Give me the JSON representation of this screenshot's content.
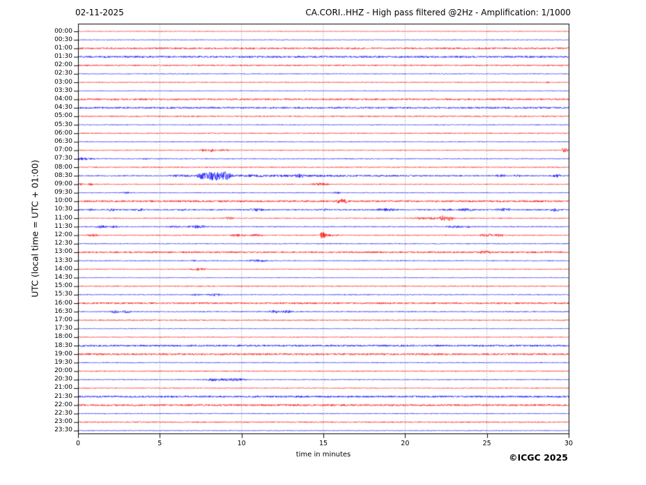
{
  "header": {
    "date": "02-11-2025",
    "title": "CA.CORI..HHZ - High pass filtered @2Hz - Amplification: 1/1000"
  },
  "axes": {
    "y_label": "UTC (local time = UTC + 01:00)",
    "x_label": "time in minutes",
    "x_ticks": [
      0,
      5,
      10,
      15,
      20,
      25,
      30
    ]
  },
  "footer": {
    "copyright": "©ICGC 2025"
  },
  "colors": {
    "r": "#ff0000",
    "b": "#0000ff",
    "grid": "#555555",
    "axis": "#000000"
  },
  "chart_data": {
    "type": "line",
    "kind": "helicorder-seismogram",
    "station": "CA.CORI..HHZ",
    "date": "02-11-2025",
    "filter": "High pass filtered @2Hz",
    "amplification": "1/1000",
    "minutes_per_row": 30,
    "x_range": [
      0,
      30
    ],
    "x_ticks": [
      0,
      5,
      10,
      15,
      20,
      25,
      30
    ],
    "grid": "vertical-dotted-5min",
    "legend": "red = traces starting on the hour, blue = traces starting on the half hour; amplitude in px, events listed as [start_min, end_min, amplitude, shape]",
    "rows": [
      {
        "t": "00:00",
        "c": "r",
        "n": 0.5,
        "ev": []
      },
      {
        "t": "00:30",
        "c": "b",
        "n": 0.5,
        "ev": []
      },
      {
        "t": "01:00",
        "c": "r",
        "n": 1.2,
        "ev": []
      },
      {
        "t": "01:30",
        "c": "b",
        "n": 1.3,
        "ev": []
      },
      {
        "t": "02:00",
        "c": "r",
        "n": 0.9,
        "ev": []
      },
      {
        "t": "02:30",
        "c": "b",
        "n": 0.55,
        "ev": []
      },
      {
        "t": "03:00",
        "c": "r",
        "n": 0.6,
        "ev": [
          [
            19.9,
            20.1,
            0.5
          ],
          [
            28.6,
            28.8,
            0.6
          ]
        ]
      },
      {
        "t": "03:30",
        "c": "b",
        "n": 0.5,
        "ev": []
      },
      {
        "t": "04:00",
        "c": "r",
        "n": 1.2,
        "ev": []
      },
      {
        "t": "04:30",
        "c": "b",
        "n": 1.2,
        "ev": []
      },
      {
        "t": "05:00",
        "c": "r",
        "n": 0.8,
        "ev": []
      },
      {
        "t": "05:30",
        "c": "b",
        "n": 0.55,
        "ev": []
      },
      {
        "t": "06:00",
        "c": "r",
        "n": 0.7,
        "ev": []
      },
      {
        "t": "06:30",
        "c": "b",
        "n": 0.6,
        "ev": []
      },
      {
        "t": "07:00",
        "c": "r",
        "n": 0.6,
        "ev": [
          [
            7.4,
            7.9,
            1.5
          ],
          [
            7.9,
            8.5,
            2.0
          ],
          [
            8.6,
            9.3,
            1.5
          ],
          [
            29.55,
            30,
            2.5,
            "block"
          ]
        ]
      },
      {
        "t": "07:30",
        "c": "b",
        "n": 0.6,
        "ev": [
          [
            0,
            1.3,
            2.0,
            "fade"
          ],
          [
            3.9,
            4.3,
            0.8
          ]
        ]
      },
      {
        "t": "08:00",
        "c": "r",
        "n": 0.7,
        "ev": []
      },
      {
        "t": "08:30",
        "c": "b",
        "n": 0.8,
        "ev": [
          [
            5.6,
            7.1,
            0.9,
            "block"
          ],
          [
            7.1,
            9.7,
            7.5
          ],
          [
            9.7,
            30,
            1.0,
            "fade"
          ],
          [
            13.2,
            13.9,
            1.5
          ],
          [
            25.5,
            26.3,
            1.5
          ],
          [
            26.6,
            27.1,
            1.3
          ],
          [
            29.0,
            29.6,
            1.7
          ]
        ]
      },
      {
        "t": "09:00",
        "c": "r",
        "n": 0.6,
        "ev": [
          [
            0,
            0.35,
            1.2,
            "block"
          ],
          [
            0.6,
            0.95,
            1.6
          ],
          [
            14.15,
            15.4,
            2.0
          ]
        ]
      },
      {
        "t": "09:30",
        "c": "b",
        "n": 0.6,
        "ev": [
          [
            2.7,
            3.15,
            1.4
          ],
          [
            15.45,
            16.1,
            1.2
          ]
        ]
      },
      {
        "t": "10:00",
        "c": "r",
        "n": 1.3,
        "ev": [
          [
            15.75,
            16.55,
            2.6
          ]
        ]
      },
      {
        "t": "10:30",
        "c": "b",
        "n": 0.9,
        "ev": [
          [
            0.55,
            0.95,
            1.1
          ],
          [
            1.65,
            2.35,
            1.7
          ],
          [
            3.4,
            4.1,
            1.1
          ],
          [
            6.25,
            6.65,
            0.9
          ],
          [
            10.4,
            11.4,
            1.7
          ],
          [
            14.9,
            15.3,
            0.8
          ],
          [
            18.2,
            19.6,
            2.0
          ],
          [
            22.2,
            23.1,
            1.1
          ],
          [
            23.2,
            24.3,
            1.5
          ],
          [
            25.5,
            26.6,
            1.6
          ],
          [
            28.8,
            29.5,
            2.0
          ]
        ]
      },
      {
        "t": "11:00",
        "c": "r",
        "n": 0.65,
        "ev": [
          [
            8.9,
            9.5,
            1.7
          ],
          [
            20.2,
            23.2,
            1.0,
            "block"
          ],
          [
            22.1,
            22.5,
            2.8
          ],
          [
            22.55,
            22.95,
            2.2
          ]
        ]
      },
      {
        "t": "11:30",
        "c": "b",
        "n": 0.7,
        "ev": [
          [
            1.0,
            1.8,
            1.6
          ],
          [
            1.9,
            2.5,
            1.3
          ],
          [
            5.5,
            6.4,
            1.2
          ],
          [
            6.6,
            8.0,
            1.8
          ],
          [
            22.4,
            24.2,
            0.8,
            "block"
          ]
        ]
      },
      {
        "t": "12:00",
        "c": "r",
        "n": 0.7,
        "ev": [
          [
            0.5,
            1.35,
            1.4
          ],
          [
            9.3,
            10.4,
            1.4
          ],
          [
            10.45,
            11.4,
            1.4
          ],
          [
            14.8,
            15.15,
            4.5,
            "spike"
          ],
          [
            15.1,
            16.3,
            1.6,
            "fade"
          ],
          [
            24.5,
            25.4,
            2.0
          ],
          [
            25.4,
            26.1,
            1.4
          ]
        ]
      },
      {
        "t": "12:30",
        "c": "b",
        "n": 0.6,
        "ev": []
      },
      {
        "t": "13:00",
        "c": "r",
        "n": 1.2,
        "ev": [
          [
            24.5,
            25.4,
            1.6
          ]
        ]
      },
      {
        "t": "13:30",
        "c": "b",
        "n": 0.6,
        "ev": [
          [
            6.9,
            7.25,
            0.8
          ],
          [
            10.3,
            11.7,
            1.7
          ]
        ]
      },
      {
        "t": "14:00",
        "c": "r",
        "n": 0.6,
        "ev": [
          [
            6.8,
            8.0,
            1.8
          ]
        ]
      },
      {
        "t": "14:30",
        "c": "b",
        "n": 0.5,
        "ev": []
      },
      {
        "t": "15:00",
        "c": "r",
        "n": 0.7,
        "ev": []
      },
      {
        "t": "15:30",
        "c": "b",
        "n": 0.6,
        "ev": [
          [
            6.9,
            7.5,
            1.1
          ],
          [
            7.9,
            8.8,
            1.6
          ]
        ]
      },
      {
        "t": "16:00",
        "c": "r",
        "n": 1.2,
        "ev": []
      },
      {
        "t": "16:30",
        "c": "b",
        "n": 0.7,
        "ev": [
          [
            1.9,
            2.6,
            1.8
          ],
          [
            2.6,
            3.3,
            2.0
          ],
          [
            11.6,
            12.35,
            1.8
          ],
          [
            12.35,
            13.1,
            2.0
          ]
        ]
      },
      {
        "t": "17:00",
        "c": "r",
        "n": 0.8,
        "ev": []
      },
      {
        "t": "17:30",
        "c": "b",
        "n": 0.5,
        "ev": []
      },
      {
        "t": "18:00",
        "c": "r",
        "n": 0.6,
        "ev": []
      },
      {
        "t": "18:30",
        "c": "b",
        "n": 1.3,
        "ev": []
      },
      {
        "t": "19:00",
        "c": "r",
        "n": 1.3,
        "ev": []
      },
      {
        "t": "19:30",
        "c": "b",
        "n": 0.6,
        "ev": []
      },
      {
        "t": "20:00",
        "c": "r",
        "n": 0.7,
        "ev": []
      },
      {
        "t": "20:30",
        "c": "b",
        "n": 0.6,
        "ev": [
          [
            7.7,
            10.4,
            1.5,
            "block"
          ]
        ]
      },
      {
        "t": "21:00",
        "c": "r",
        "n": 0.6,
        "ev": []
      },
      {
        "t": "21:30",
        "c": "b",
        "n": 1.3,
        "ev": []
      },
      {
        "t": "22:00",
        "c": "r",
        "n": 1.3,
        "ev": []
      },
      {
        "t": "22:30",
        "c": "b",
        "n": 0.6,
        "ev": []
      },
      {
        "t": "23:00",
        "c": "r",
        "n": 0.8,
        "ev": []
      },
      {
        "t": "23:30",
        "c": "b",
        "n": 0.5,
        "ev": []
      }
    ]
  }
}
